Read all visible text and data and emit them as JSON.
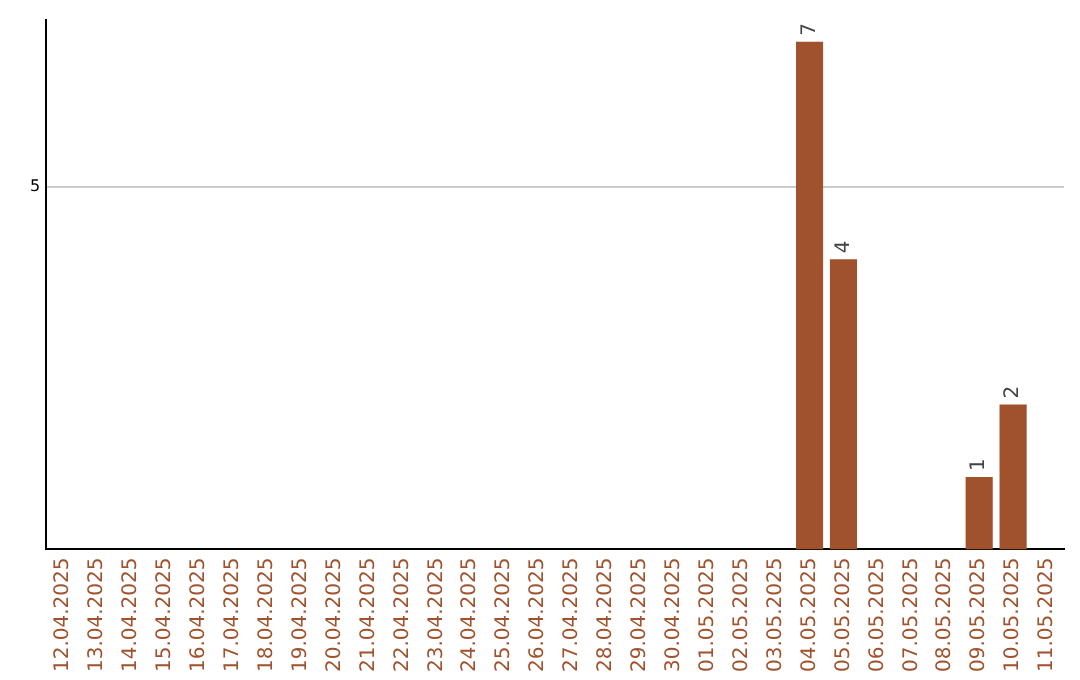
{
  "chart_data": {
    "type": "bar",
    "categories": [
      "12.04.2025",
      "13.04.2025",
      "14.04.2025",
      "15.04.2025",
      "16.04.2025",
      "17.04.2025",
      "18.04.2025",
      "19.04.2025",
      "20.04.2025",
      "21.04.2025",
      "22.04.2025",
      "23.04.2025",
      "24.04.2025",
      "25.04.2025",
      "26.04.2025",
      "27.04.2025",
      "28.04.2025",
      "29.04.2025",
      "30.04.2025",
      "01.05.2025",
      "02.05.2025",
      "03.05.2025",
      "04.05.2025",
      "05.05.2025",
      "06.05.2025",
      "07.05.2025",
      "08.05.2025",
      "09.05.2025",
      "10.05.2025",
      "11.05.2025"
    ],
    "values": [
      null,
      null,
      null,
      null,
      null,
      null,
      null,
      null,
      null,
      null,
      null,
      null,
      null,
      null,
      null,
      null,
      null,
      null,
      null,
      null,
      null,
      null,
      7,
      4,
      null,
      null,
      null,
      1,
      2,
      null
    ],
    "data_labels": true,
    "color": "#a0522d",
    "ylim": [
      0,
      7.3
    ],
    "yticks": [
      5
    ],
    "grid": "y",
    "legend": false
  }
}
